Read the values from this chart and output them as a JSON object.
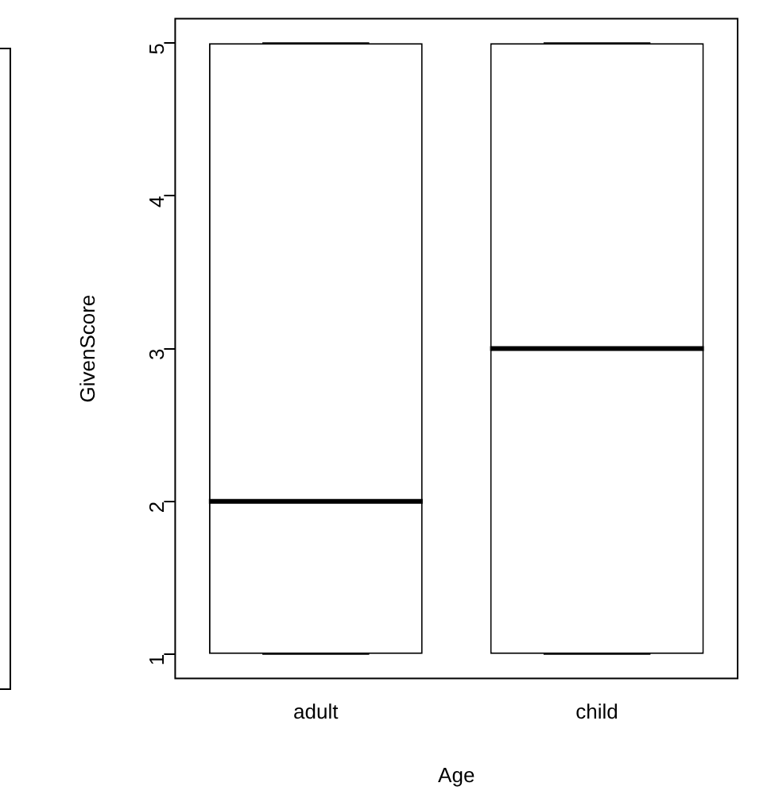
{
  "chart_data": {
    "type": "box",
    "xlabel": "Age",
    "ylabel": "GivenScore",
    "categories": [
      "adult",
      "child"
    ],
    "boxes": [
      {
        "low": 1,
        "q1": 1,
        "median": 2,
        "q3": 5,
        "high": 5
      },
      {
        "low": 1,
        "q1": 1,
        "median": 3,
        "q3": 5,
        "high": 5
      }
    ],
    "ylim": [
      0.84,
      5.16
    ],
    "yticks": [
      1,
      2,
      3,
      4,
      5
    ]
  }
}
